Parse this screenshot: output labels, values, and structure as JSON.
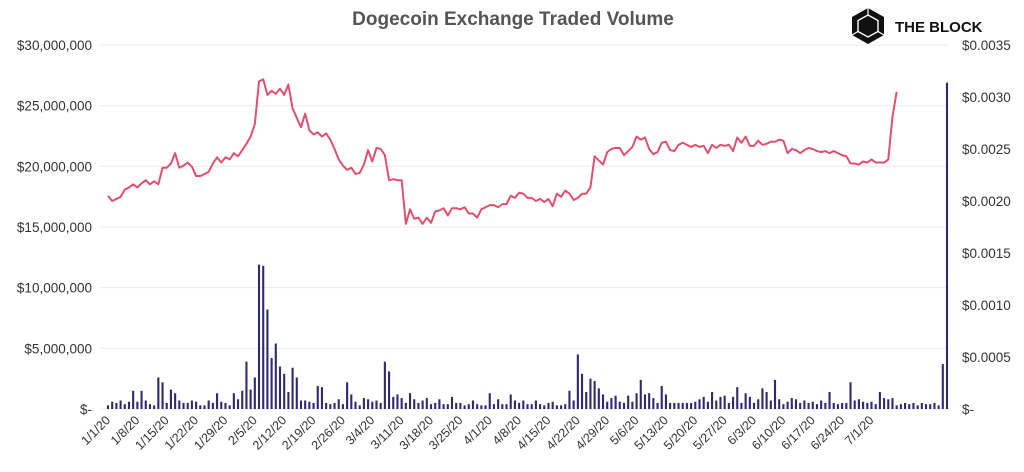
{
  "chart_data": {
    "type": "bar+line",
    "title": "Dogecoin Exchange Traded Volume",
    "brand": "THE BLOCK",
    "brand_icon": "cube-logo-icon",
    "left_axis": {
      "ticks": [
        0,
        5000000,
        10000000,
        15000000,
        20000000,
        25000000,
        30000000
      ],
      "tick_labels": [
        "$-",
        "$5,000,000",
        "$10,000,000",
        "$15,000,000",
        "$20,000,000",
        "$25,000,000",
        "$30,000,000"
      ],
      "range": [
        0,
        30000000
      ]
    },
    "right_axis": {
      "ticks": [
        0,
        0.0005,
        0.001,
        0.0015,
        0.002,
        0.0025,
        0.003,
        0.0035
      ],
      "tick_labels": [
        "$-",
        "$0.0005",
        "$0.0010",
        "$0.0015",
        "$0.0020",
        "$0.0025",
        "$0.0030",
        "$0.0035"
      ],
      "range": [
        0,
        0.0035
      ]
    },
    "x_start": "1/1/20",
    "x_tick_labels": [
      "1/1/20",
      "1/8/20",
      "1/15/20",
      "1/22/20",
      "1/29/20",
      "2/5/20",
      "2/12/20",
      "2/19/20",
      "2/26/20",
      "3/4/20",
      "3/11/20",
      "3/18/20",
      "3/25/20",
      "4/1/20",
      "4/8/20",
      "4/15/20",
      "4/22/20",
      "4/29/20",
      "5/6/20",
      "5/13/20",
      "5/20/20",
      "5/27/20",
      "6/3/20",
      "6/10/20",
      "6/17/20",
      "6/24/20",
      "7/1/20"
    ],
    "grid": true,
    "series": [
      {
        "kind": "bar",
        "axis": "left",
        "color": "#2e2a6e",
        "values": [
          300000,
          600000,
          500000,
          700000,
          400000,
          600000,
          1500000,
          600000,
          1500000,
          700000,
          400000,
          300000,
          2600000,
          2200000,
          500000,
          1600000,
          1300000,
          700000,
          500000,
          500000,
          700000,
          600000,
          300000,
          300000,
          700000,
          500000,
          1300000,
          600000,
          500000,
          300000,
          1300000,
          800000,
          1500000,
          3900000,
          1600000,
          2600000,
          11900000,
          11800000,
          8200000,
          4200000,
          5400000,
          3500000,
          2900000,
          1400000,
          3400000,
          2600000,
          700000,
          700000,
          600000,
          500000,
          1900000,
          1800000,
          500000,
          400000,
          500000,
          800000,
          400000,
          2200000,
          1200000,
          600000,
          300000,
          900000,
          800000,
          600000,
          700000,
          500000,
          3900000,
          3100000,
          1000000,
          1200000,
          900000,
          500000,
          1300000,
          800000,
          500000,
          700000,
          900000,
          400000,
          500000,
          800000,
          400000,
          400000,
          1000000,
          500000,
          500000,
          300000,
          400000,
          700000,
          400000,
          300000,
          300000,
          1300000,
          400000,
          800000,
          400000,
          400000,
          1200000,
          700000,
          500000,
          700000,
          400000,
          400000,
          700000,
          400000,
          300000,
          500000,
          600000,
          300000,
          300000,
          400000,
          1500000,
          700000,
          4500000,
          2900000,
          1400000,
          2500000,
          2300000,
          1700000,
          1200000,
          600000,
          900000,
          1100000,
          600000,
          500000,
          1100000,
          600000,
          1300000,
          2400000,
          1200000,
          1300000,
          900000,
          500000,
          1900000,
          1200000,
          500000,
          500000,
          500000,
          500000,
          500000,
          500000,
          600000,
          800000,
          1000000,
          600000,
          1400000,
          700000,
          1000000,
          1100000,
          500000,
          1000000,
          1800000,
          500000,
          1300000,
          1000000,
          500000,
          800000,
          1700000,
          1400000,
          700000,
          2400000,
          800000,
          400000,
          600000,
          900000,
          800000,
          500000,
          700000,
          500000,
          600000,
          400000,
          700000,
          500000,
          1400000,
          500000,
          400000,
          500000,
          500000,
          2200000,
          700000,
          800000,
          600000,
          500000,
          600000,
          400000,
          1400000,
          900000,
          800000,
          900000,
          300000,
          400000,
          500000,
          400000,
          500000,
          300000,
          500000,
          400000,
          400000,
          500000,
          300000,
          3700000,
          26900000
        ]
      },
      {
        "kind": "line",
        "axis": "right",
        "color": "#e0506e",
        "values": [
          0.00205,
          0.002,
          0.00202,
          0.00204,
          0.00211,
          0.00213,
          0.00216,
          0.00213,
          0.00217,
          0.0022,
          0.00216,
          0.00219,
          0.00216,
          0.00232,
          0.00232,
          0.00236,
          0.00246,
          0.00232,
          0.00234,
          0.00237,
          0.00233,
          0.00224,
          0.00224,
          0.00226,
          0.00228,
          0.00236,
          0.00242,
          0.00237,
          0.00242,
          0.0024,
          0.00246,
          0.00243,
          0.00249,
          0.00255,
          0.00262,
          0.00274,
          0.00315,
          0.00317,
          0.00302,
          0.00306,
          0.00303,
          0.00308,
          0.00302,
          0.00312,
          0.00289,
          0.0028,
          0.00271,
          0.00284,
          0.00268,
          0.00264,
          0.00266,
          0.00262,
          0.00265,
          0.00259,
          0.0025,
          0.0024,
          0.00234,
          0.0023,
          0.00232,
          0.00226,
          0.00227,
          0.00235,
          0.00249,
          0.00238,
          0.00251,
          0.0025,
          0.00244,
          0.0022,
          0.00221,
          0.0022,
          0.0022,
          0.00178,
          0.00192,
          0.00183,
          0.00184,
          0.00178,
          0.00184,
          0.00179,
          0.0019,
          0.00191,
          0.00193,
          0.00186,
          0.00193,
          0.00193,
          0.00192,
          0.00194,
          0.00188,
          0.00188,
          0.00184,
          0.00192,
          0.00194,
          0.00196,
          0.00196,
          0.00194,
          0.00197,
          0.00197,
          0.00205,
          0.00203,
          0.00208,
          0.00207,
          0.00203,
          0.00203,
          0.002,
          0.00202,
          0.00199,
          0.00202,
          0.00195,
          0.00207,
          0.00204,
          0.0021,
          0.00207,
          0.00201,
          0.00203,
          0.00207,
          0.00207,
          0.00213,
          0.00243,
          0.00239,
          0.00235,
          0.00247,
          0.0025,
          0.00251,
          0.00251,
          0.00244,
          0.00248,
          0.00252,
          0.00262,
          0.00259,
          0.00261,
          0.0025,
          0.00245,
          0.00247,
          0.00256,
          0.00257,
          0.00249,
          0.00248,
          0.00254,
          0.00256,
          0.00254,
          0.00252,
          0.00254,
          0.00252,
          0.00253,
          0.00246,
          0.00254,
          0.00251,
          0.00254,
          0.00253,
          0.00254,
          0.00248,
          0.00261,
          0.00256,
          0.00262,
          0.00253,
          0.00253,
          0.00258,
          0.00254,
          0.00255,
          0.00257,
          0.00257,
          0.00259,
          0.00258,
          0.00246,
          0.0025,
          0.00249,
          0.00246,
          0.00249,
          0.00251,
          0.0025,
          0.00248,
          0.00247,
          0.00248,
          0.00246,
          0.00248,
          0.00246,
          0.00244,
          0.00243,
          0.00236,
          0.00236,
          0.00235,
          0.00238,
          0.00237,
          0.0024,
          0.00237,
          0.00237,
          0.00237,
          0.0024,
          0.00281,
          0.00305
        ]
      }
    ]
  }
}
